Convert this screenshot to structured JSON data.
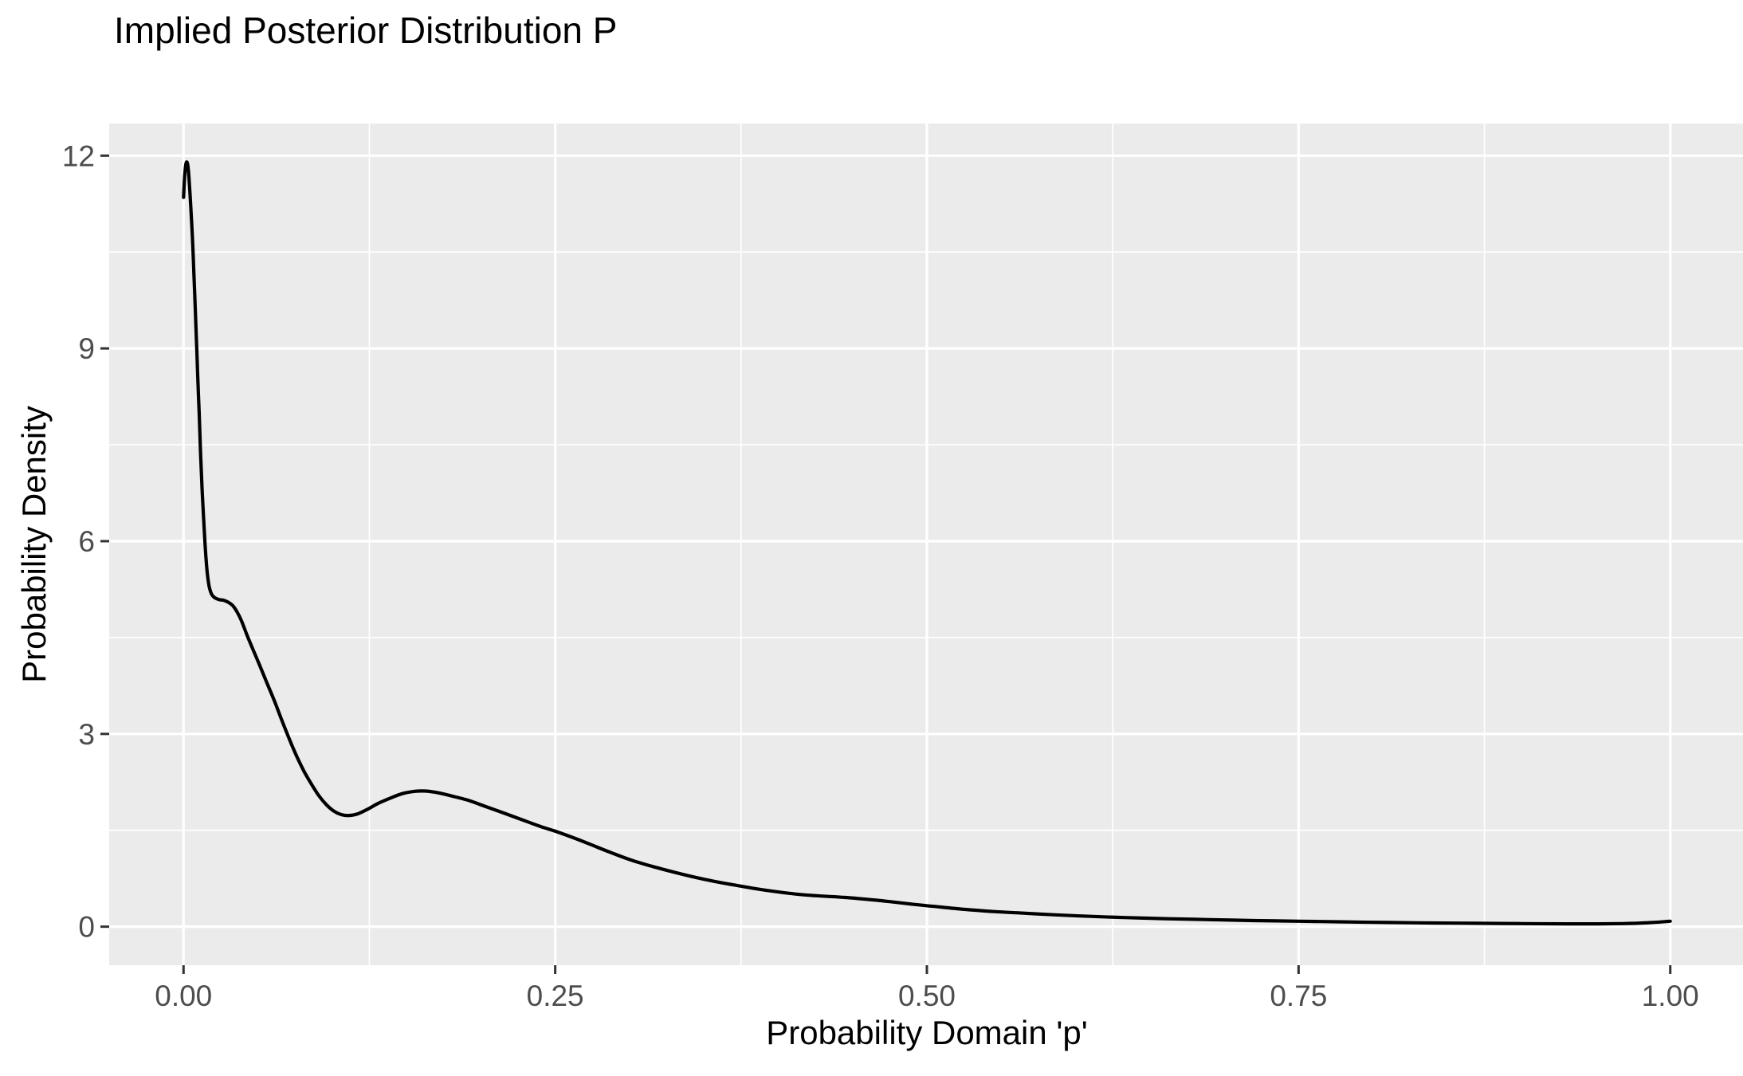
{
  "chart_data": {
    "type": "line",
    "title": "Implied Posterior Distribution P",
    "xlabel": "Probability Domain 'p'",
    "ylabel": "Probability Density",
    "xlim": [
      -0.05,
      1.05
    ],
    "ylim": [
      -0.6,
      12.5
    ],
    "legend_position": "none",
    "grid": {
      "major": true,
      "minor": true
    },
    "x_ticks": {
      "values": [
        0,
        0.25,
        0.5,
        0.75,
        1.0
      ],
      "labels": [
        "0.00",
        "0.25",
        "0.50",
        "0.75",
        "1.00"
      ],
      "minor_values": [
        0.125,
        0.375,
        0.625,
        0.875
      ]
    },
    "y_ticks": {
      "values": [
        0,
        3,
        6,
        9,
        12
      ],
      "labels": [
        "0",
        "3",
        "6",
        "9",
        "12"
      ],
      "minor_values": [
        1.5,
        4.5,
        7.5,
        10.5
      ]
    },
    "series": [
      {
        "name": "posterior_density",
        "color": "#000000",
        "points": [
          [
            0.0,
            11.35
          ],
          [
            0.0006,
            11.62
          ],
          [
            0.0013,
            11.82
          ],
          [
            0.002,
            11.9
          ],
          [
            0.0028,
            11.86
          ],
          [
            0.0036,
            11.68
          ],
          [
            0.0045,
            11.35
          ],
          [
            0.0055,
            10.95
          ],
          [
            0.0065,
            10.45
          ],
          [
            0.0075,
            9.85
          ],
          [
            0.0085,
            9.25
          ],
          [
            0.0095,
            8.6
          ],
          [
            0.0105,
            8.0
          ],
          [
            0.0115,
            7.35
          ],
          [
            0.0125,
            6.8
          ],
          [
            0.0135,
            6.35
          ],
          [
            0.0145,
            5.95
          ],
          [
            0.0155,
            5.62
          ],
          [
            0.0165,
            5.4
          ],
          [
            0.0175,
            5.27
          ],
          [
            0.019,
            5.17
          ],
          [
            0.021,
            5.12
          ],
          [
            0.024,
            5.09
          ],
          [
            0.027,
            5.08
          ],
          [
            0.03,
            5.05
          ],
          [
            0.033,
            5.0
          ],
          [
            0.036,
            4.9
          ],
          [
            0.039,
            4.76
          ],
          [
            0.043,
            4.52
          ],
          [
            0.047,
            4.3
          ],
          [
            0.051,
            4.08
          ],
          [
            0.056,
            3.8
          ],
          [
            0.061,
            3.52
          ],
          [
            0.066,
            3.22
          ],
          [
            0.071,
            2.93
          ],
          [
            0.076,
            2.66
          ],
          [
            0.081,
            2.42
          ],
          [
            0.086,
            2.22
          ],
          [
            0.091,
            2.04
          ],
          [
            0.096,
            1.9
          ],
          [
            0.101,
            1.8
          ],
          [
            0.106,
            1.745
          ],
          [
            0.111,
            1.73
          ],
          [
            0.117,
            1.755
          ],
          [
            0.124,
            1.83
          ],
          [
            0.131,
            1.92
          ],
          [
            0.139,
            2.0
          ],
          [
            0.147,
            2.07
          ],
          [
            0.155,
            2.105
          ],
          [
            0.163,
            2.11
          ],
          [
            0.171,
            2.085
          ],
          [
            0.181,
            2.03
          ],
          [
            0.191,
            1.97
          ],
          [
            0.202,
            1.88
          ],
          [
            0.214,
            1.78
          ],
          [
            0.227,
            1.67
          ],
          [
            0.24,
            1.56
          ],
          [
            0.252,
            1.47
          ],
          [
            0.265,
            1.36
          ],
          [
            0.278,
            1.24
          ],
          [
            0.29,
            1.13
          ],
          [
            0.302,
            1.03
          ],
          [
            0.315,
            0.94
          ],
          [
            0.328,
            0.86
          ],
          [
            0.342,
            0.78
          ],
          [
            0.356,
            0.71
          ],
          [
            0.37,
            0.65
          ],
          [
            0.385,
            0.59
          ],
          [
            0.4,
            0.54
          ],
          [
            0.415,
            0.5
          ],
          [
            0.43,
            0.475
          ],
          [
            0.445,
            0.455
          ],
          [
            0.46,
            0.425
          ],
          [
            0.475,
            0.39
          ],
          [
            0.49,
            0.35
          ],
          [
            0.505,
            0.315
          ],
          [
            0.525,
            0.27
          ],
          [
            0.545,
            0.235
          ],
          [
            0.565,
            0.21
          ],
          [
            0.585,
            0.185
          ],
          [
            0.61,
            0.16
          ],
          [
            0.635,
            0.14
          ],
          [
            0.66,
            0.125
          ],
          [
            0.69,
            0.11
          ],
          [
            0.72,
            0.095
          ],
          [
            0.75,
            0.085
          ],
          [
            0.78,
            0.075
          ],
          [
            0.81,
            0.065
          ],
          [
            0.84,
            0.058
          ],
          [
            0.87,
            0.052
          ],
          [
            0.9,
            0.047
          ],
          [
            0.93,
            0.044
          ],
          [
            0.952,
            0.044
          ],
          [
            0.968,
            0.048
          ],
          [
            0.98,
            0.056
          ],
          [
            0.99,
            0.068
          ],
          [
            1.0,
            0.085
          ]
        ]
      }
    ]
  },
  "style": {
    "background": "#FFFFFF",
    "panel_background": "#EBEBEB",
    "gridline_color": "#FFFFFF",
    "tick_mark_color": "#333333",
    "tick_label_color": "#4D4D4D",
    "title_color": "#000000",
    "curve_color": "#000000"
  }
}
